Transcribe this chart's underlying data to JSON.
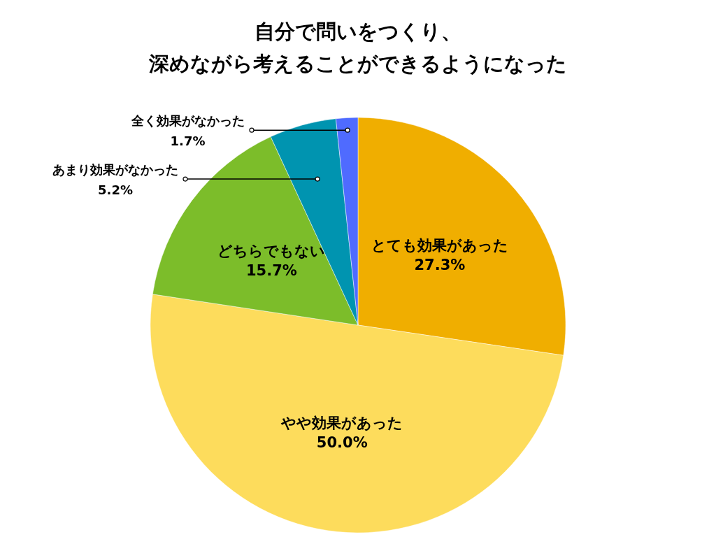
{
  "chart_data": {
    "type": "pie",
    "title": "自分で問いをつくり、深めながら考えることができるようになった",
    "categories": [
      "とても効果があった",
      "やや効果があった",
      "どちらでもない",
      "あまり効果がなかった",
      "全く効果がなかった"
    ],
    "values": [
      27.3,
      50.0,
      15.7,
      5.2,
      1.7
    ],
    "value_labels": [
      "27.3%",
      "50.0%",
      "15.7%",
      "5.2%",
      "1.7%"
    ],
    "colors": [
      "#f0ae00",
      "#fddc5c",
      "#7cbd2a",
      "#0094b0",
      "#4f6bff"
    ]
  }
}
